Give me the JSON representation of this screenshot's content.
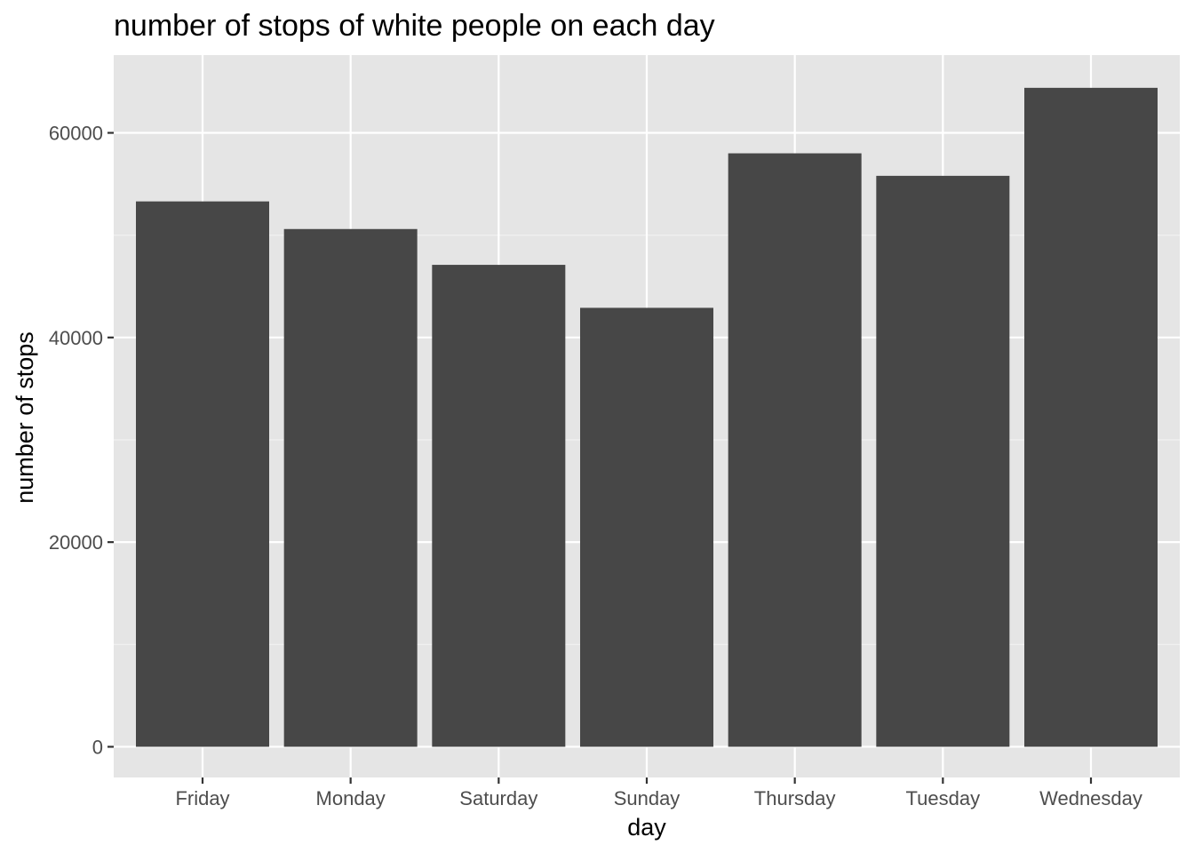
{
  "chart_data": {
    "type": "bar",
    "title": "number of stops of white people on each day",
    "xlabel": "day",
    "ylabel": "number of stops",
    "categories": [
      "Friday",
      "Monday",
      "Saturday",
      "Sunday",
      "Thursday",
      "Tuesday",
      "Wednesday"
    ],
    "values": [
      53300,
      50600,
      47100,
      42900,
      58000,
      55800,
      64400
    ],
    "ylim": [
      -3000,
      67600
    ],
    "yticks": [
      0,
      20000,
      40000,
      60000
    ],
    "ytick_labels": [
      "0",
      "20000",
      "40000",
      "60000"
    ],
    "grid": true,
    "legend": "none",
    "colors": {
      "panel_background": "#e5e5e5",
      "grid_major": "#ffffff",
      "grid_minor": "#f2f2f2",
      "bar_fill": "#474747",
      "tick_mark": "#333333",
      "tick_text": "#4d4d4d",
      "text": "#000000"
    }
  }
}
